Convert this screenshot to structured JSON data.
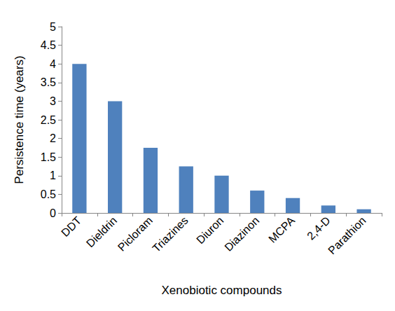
{
  "chart_data": {
    "type": "bar",
    "x_label": "Xenobiotic compounds",
    "y_label": "Persistence time (years)",
    "categories": [
      "DDT",
      "Dieldrin",
      "Picloram",
      "Triazines",
      "Diuron",
      "Diazinon",
      "MCPA",
      "2,4-D",
      "Parathion"
    ],
    "values": [
      4,
      3,
      1.75,
      1.25,
      1,
      0.6,
      0.4,
      0.2,
      0.1
    ],
    "color": "#4f81bd",
    "ylim": [
      0,
      5
    ],
    "yticks": [
      0,
      0.5,
      1,
      1.5,
      2,
      2.5,
      3,
      3.5,
      4,
      4.5,
      5
    ],
    "grid": false
  }
}
